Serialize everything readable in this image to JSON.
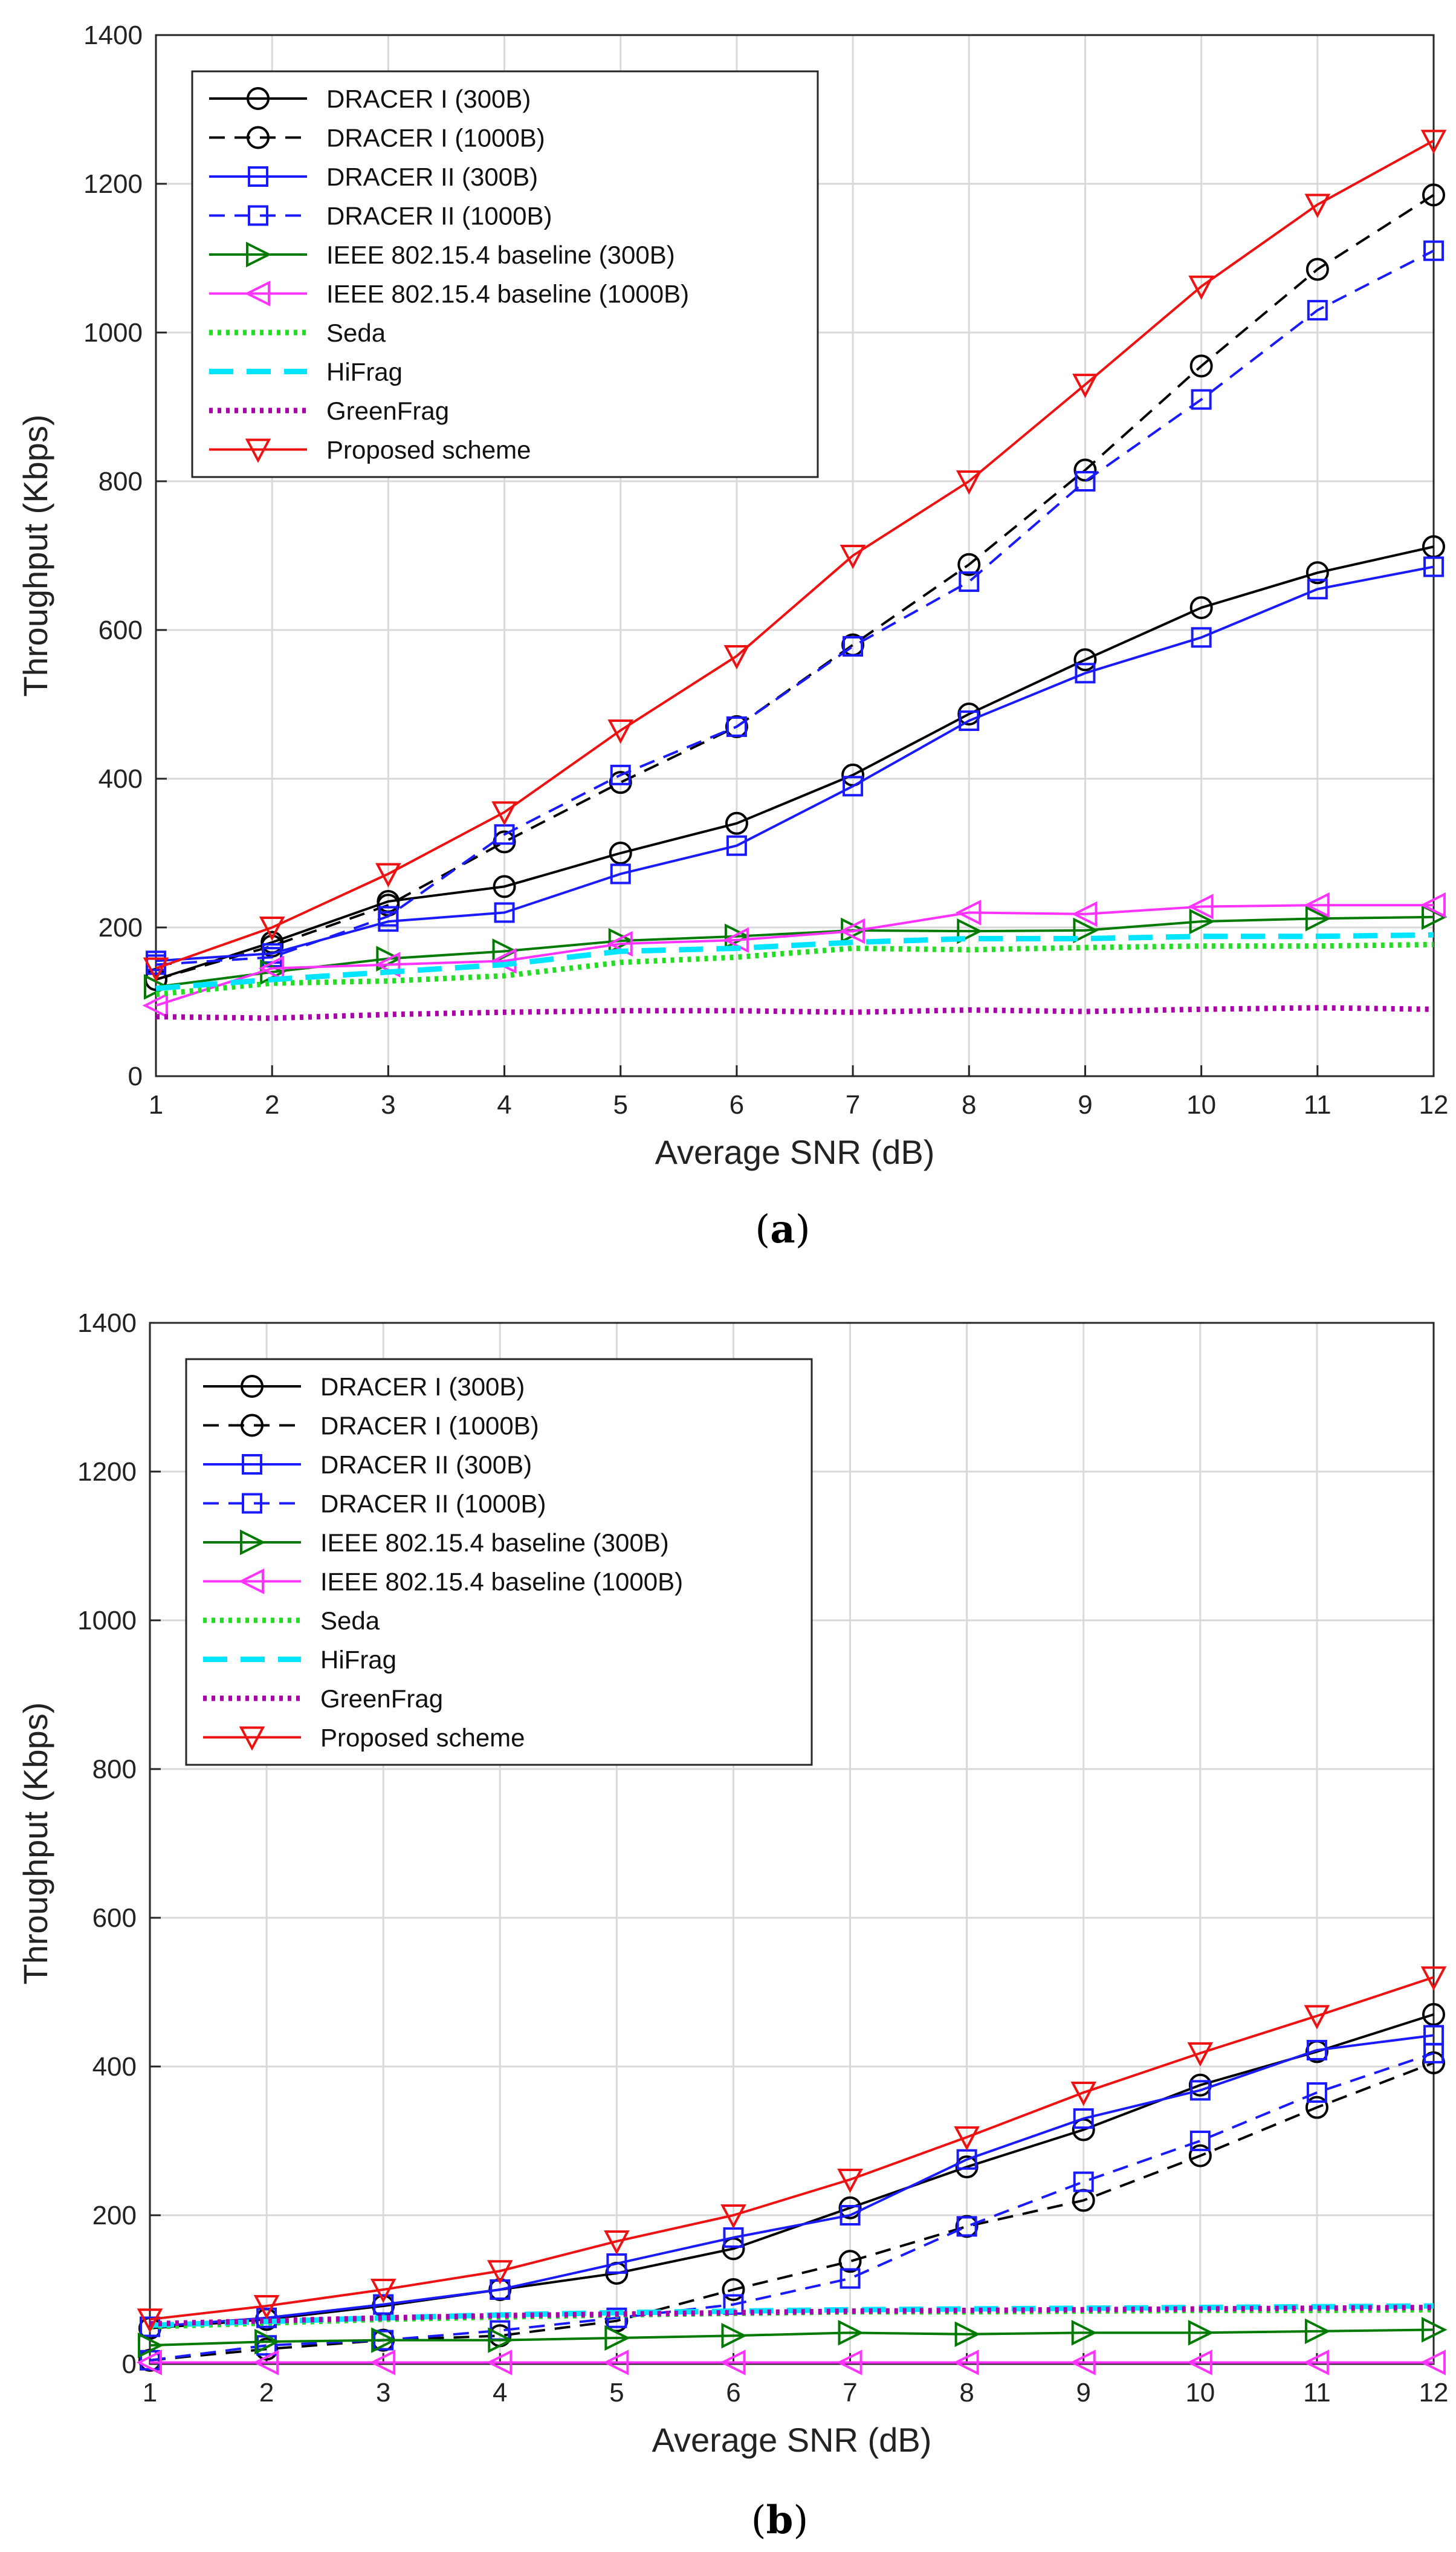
{
  "chart_data": [
    {
      "type": "line",
      "caption_letter": "a",
      "xlabel": "Average SNR (dB)",
      "ylabel": "Throughput (Kbps)",
      "xlim": [
        1,
        12
      ],
      "ylim": [
        0,
        1400
      ],
      "xticks": [
        1,
        2,
        3,
        4,
        5,
        6,
        7,
        8,
        9,
        10,
        11,
        12
      ],
      "yticks": [
        0,
        200,
        400,
        600,
        800,
        1000,
        1200,
        1400
      ],
      "grid": true,
      "legend_position": "top-left",
      "x": [
        1,
        2,
        3,
        4,
        5,
        6,
        7,
        8,
        9,
        10,
        11,
        12
      ],
      "series": [
        {
          "name": "DRACER I (300B)",
          "color": "#000000",
          "dash": "solid",
          "marker": "circle",
          "values": [
            130,
            180,
            235,
            255,
            300,
            340,
            405,
            487,
            560,
            630,
            677,
            712
          ]
        },
        {
          "name": "DRACER I (1000B)",
          "color": "#000000",
          "dash": "dashed",
          "marker": "circle",
          "values": [
            130,
            175,
            230,
            315,
            395,
            470,
            580,
            688,
            815,
            955,
            1085,
            1185
          ]
        },
        {
          "name": "DRACER II (300B)",
          "color": "#1a1aff",
          "dash": "solid",
          "marker": "square",
          "values": [
            155,
            165,
            208,
            220,
            272,
            310,
            390,
            478,
            542,
            590,
            655,
            685
          ]
        },
        {
          "name": "DRACER II (1000B)",
          "color": "#1a1aff",
          "dash": "dashed",
          "marker": "square",
          "values": [
            150,
            160,
            215,
            325,
            405,
            470,
            578,
            665,
            800,
            910,
            1030,
            1110
          ]
        },
        {
          "name": "IEEE 802.15.4 baseline (300B)",
          "color": "#007a00",
          "dash": "solid",
          "marker": "tri-right",
          "values": [
            120,
            140,
            158,
            168,
            182,
            188,
            196,
            195,
            196,
            208,
            212,
            214
          ]
        },
        {
          "name": "IEEE 802.15.4 baseline (1000B)",
          "color": "#ff33ff",
          "dash": "solid",
          "marker": "tri-left",
          "values": [
            95,
            145,
            150,
            155,
            178,
            183,
            195,
            220,
            218,
            228,
            230,
            230
          ]
        },
        {
          "name": "Seda",
          "color": "#22dd22",
          "dash": "dotted",
          "marker": "none",
          "values": [
            110,
            125,
            128,
            135,
            153,
            160,
            172,
            170,
            173,
            175,
            175,
            177
          ]
        },
        {
          "name": "HiFrag",
          "color": "#00e5ff",
          "dash": "dashed-long",
          "marker": "none",
          "values": [
            118,
            130,
            140,
            150,
            168,
            172,
            180,
            185,
            185,
            188,
            188,
            190
          ]
        },
        {
          "name": "GreenFrag",
          "color": "#aa00aa",
          "dash": "dotted",
          "marker": "none",
          "values": [
            80,
            78,
            83,
            86,
            88,
            88,
            86,
            89,
            87,
            90,
            92,
            90
          ]
        },
        {
          "name": "Proposed scheme",
          "color": "#ee1111",
          "dash": "solid",
          "marker": "tri-down",
          "values": [
            145,
            200,
            272,
            355,
            465,
            565,
            700,
            800,
            930,
            1062,
            1172,
            1258
          ]
        }
      ]
    },
    {
      "type": "line",
      "caption_letter": "b",
      "xlabel": "Average SNR (dB)",
      "ylabel": "Throughput (Kbps)",
      "xlim": [
        1,
        12
      ],
      "ylim": [
        0,
        1400
      ],
      "xticks": [
        1,
        2,
        3,
        4,
        5,
        6,
        7,
        8,
        9,
        10,
        11,
        12
      ],
      "yticks": [
        0,
        200,
        400,
        600,
        800,
        1000,
        1200,
        1400
      ],
      "grid": true,
      "legend_position": "top-left",
      "x": [
        1,
        2,
        3,
        4,
        5,
        6,
        7,
        8,
        9,
        10,
        11,
        12
      ],
      "series": [
        {
          "name": "DRACER I (300B)",
          "color": "#000000",
          "dash": "solid",
          "marker": "circle",
          "values": [
            48,
            60,
            78,
            100,
            122,
            155,
            210,
            265,
            315,
            375,
            420,
            470
          ]
        },
        {
          "name": "DRACER I (1000B)",
          "color": "#000000",
          "dash": "dashed",
          "marker": "circle",
          "values": [
            5,
            20,
            32,
            38,
            58,
            100,
            138,
            185,
            220,
            280,
            345,
            405
          ]
        },
        {
          "name": "DRACER II (300B)",
          "color": "#1a1aff",
          "dash": "solid",
          "marker": "square",
          "values": [
            50,
            62,
            80,
            100,
            135,
            170,
            200,
            275,
            330,
            368,
            422,
            442
          ]
        },
        {
          "name": "DRACER II (1000B)",
          "color": "#1a1aff",
          "dash": "dashed",
          "marker": "square",
          "values": [
            5,
            25,
            32,
            45,
            62,
            80,
            115,
            185,
            245,
            300,
            365,
            418
          ]
        },
        {
          "name": "IEEE 802.15.4 baseline (300B)",
          "color": "#007a00",
          "dash": "solid",
          "marker": "tri-right",
          "values": [
            25,
            30,
            32,
            32,
            35,
            38,
            42,
            40,
            42,
            42,
            44,
            46
          ]
        },
        {
          "name": "IEEE 802.15.4 baseline (1000B)",
          "color": "#ff33ff",
          "dash": "solid",
          "marker": "tri-left",
          "values": [
            2,
            2,
            2,
            2,
            2,
            2,
            2,
            2,
            2,
            2,
            2,
            2
          ]
        },
        {
          "name": "Seda",
          "color": "#22dd22",
          "dash": "dotted",
          "marker": "none",
          "values": [
            50,
            55,
            60,
            63,
            66,
            68,
            70,
            70,
            71,
            72,
            72,
            73
          ]
        },
        {
          "name": "HiFrag",
          "color": "#00e5ff",
          "dash": "dashed-long",
          "marker": "none",
          "values": [
            52,
            57,
            62,
            66,
            69,
            71,
            73,
            74,
            75,
            76,
            77,
            78
          ]
        },
        {
          "name": "GreenFrag",
          "color": "#aa00aa",
          "dash": "dotted",
          "marker": "none",
          "values": [
            54,
            58,
            62,
            65,
            67,
            69,
            71,
            72,
            73,
            74,
            75,
            76
          ]
        },
        {
          "name": "Proposed scheme",
          "color": "#ee1111",
          "dash": "solid",
          "marker": "tri-down",
          "values": [
            60,
            78,
            100,
            125,
            165,
            200,
            248,
            305,
            365,
            418,
            468,
            520
          ]
        }
      ]
    }
  ]
}
